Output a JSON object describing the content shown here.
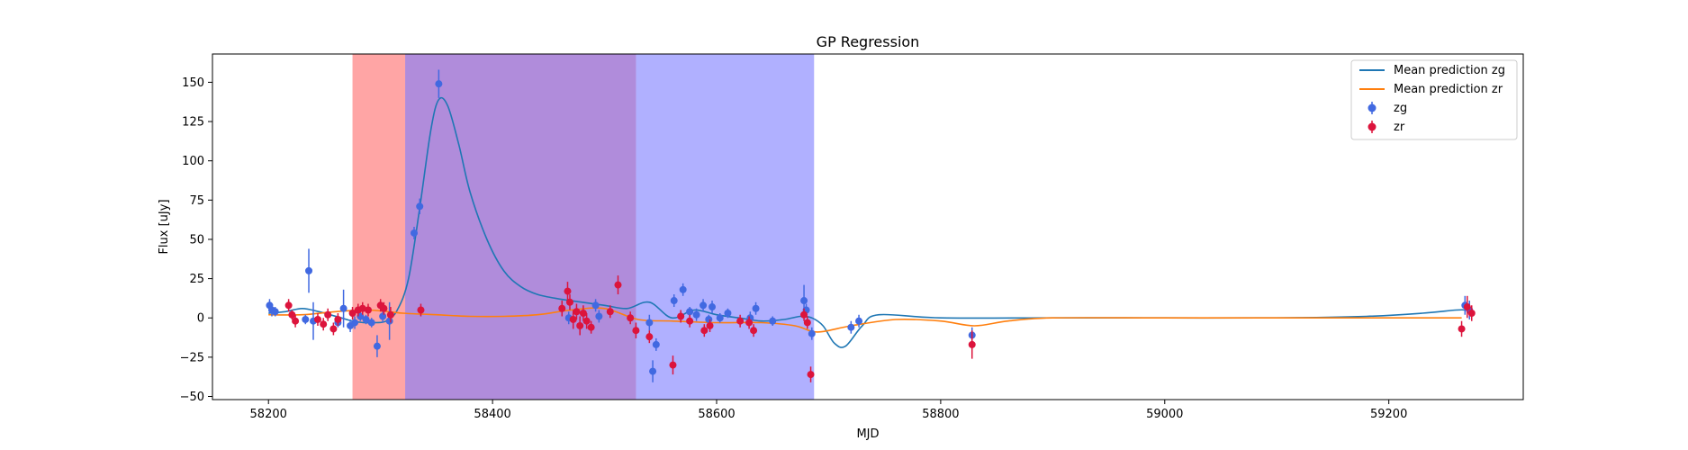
{
  "chart_data": {
    "type": "scatter",
    "title": "GP Regression",
    "xlabel": "MJD",
    "ylabel": "Flux [uJy]",
    "xlim": [
      58150,
      59320
    ],
    "ylim": [
      -52,
      168
    ],
    "xticks": [
      58200,
      58400,
      58600,
      58800,
      59000,
      59200
    ],
    "yticks": [
      -50,
      -25,
      0,
      25,
      50,
      75,
      100,
      125,
      150
    ],
    "grid": false,
    "legend_position": "top-right",
    "colors": {
      "zg_line": "#1f77b4",
      "zr_line": "#ff7f0e",
      "zg_points": "#4169e1",
      "zr_points": "#dc143c",
      "span_red": "#ff7f7f",
      "span_blue": "#7b7bff"
    },
    "spans": [
      {
        "x0": 58275,
        "x1": 58322,
        "color": "#ff7f7f",
        "opacity": 0.7
      },
      {
        "x0": 58322,
        "x1": 58528,
        "color": "#ff7f7f",
        "opacity": 0.7
      },
      {
        "x0": 58322,
        "x1": 58528,
        "color": "#7b7bff",
        "opacity": 0.6
      },
      {
        "x0": 58528,
        "x1": 58687,
        "color": "#7b7bff",
        "opacity": 0.6
      }
    ],
    "series": [
      {
        "name": "Mean prediction zg",
        "kind": "line",
        "color": "#1f77b4",
        "x": [
          58200,
          58215,
          58230,
          58245,
          58255,
          58265,
          58275,
          58285,
          58295,
          58305,
          58315,
          58325,
          58335,
          58345,
          58352,
          58360,
          58370,
          58380,
          58395,
          58410,
          58425,
          58440,
          58460,
          58480,
          58500,
          58520,
          58540,
          58560,
          58580,
          58600,
          58620,
          58640,
          58660,
          58675,
          58685,
          58695,
          58705,
          58715,
          58730,
          58745,
          58800,
          58900,
          59000,
          59100,
          59180,
          59230,
          59260,
          59270
        ],
        "y": [
          3,
          4,
          6,
          4,
          2,
          0,
          -2,
          -3,
          -3,
          -2,
          5,
          25,
          70,
          120,
          139,
          135,
          110,
          80,
          50,
          30,
          20,
          15,
          12,
          10,
          8,
          6,
          10,
          0,
          5,
          2,
          0,
          -2,
          -1,
          1,
          0,
          -5,
          -16,
          -18,
          -5,
          2,
          0,
          0,
          0,
          0,
          1,
          3,
          5,
          5
        ]
      },
      {
        "name": "Mean prediction zr",
        "kind": "line",
        "color": "#ff7f0e",
        "x": [
          58200,
          58230,
          58260,
          58290,
          58320,
          58350,
          58380,
          58410,
          58440,
          58470,
          58500,
          58530,
          58560,
          58600,
          58640,
          58670,
          58690,
          58720,
          58760,
          58800,
          58830,
          58860,
          58900,
          59000,
          59100,
          59200,
          59265
        ],
        "y": [
          2,
          2,
          4,
          5,
          3,
          2,
          1,
          1,
          2,
          5,
          6,
          -1,
          -2,
          -3,
          -3,
          -5,
          -9,
          -5,
          -1,
          -2,
          -5,
          -2,
          0,
          0,
          0,
          0,
          0
        ]
      },
      {
        "name": "zg",
        "kind": "errorbar",
        "color": "#4169e1",
        "points": [
          {
            "x": 58201,
            "y": 8,
            "e": 4
          },
          {
            "x": 58203,
            "y": 5,
            "e": 4
          },
          {
            "x": 58206,
            "y": 4,
            "e": 3
          },
          {
            "x": 58233,
            "y": -1,
            "e": 3
          },
          {
            "x": 58236,
            "y": 30,
            "e": 14
          },
          {
            "x": 58240,
            "y": -2,
            "e": 12
          },
          {
            "x": 58262,
            "y": -3,
            "e": 3
          },
          {
            "x": 58267,
            "y": 6,
            "e": 12
          },
          {
            "x": 58273,
            "y": -5,
            "e": 4
          },
          {
            "x": 58277,
            "y": -3,
            "e": 4
          },
          {
            "x": 58282,
            "y": 1,
            "e": 3
          },
          {
            "x": 58287,
            "y": -1,
            "e": 3
          },
          {
            "x": 58292,
            "y": -3,
            "e": 3
          },
          {
            "x": 58297,
            "y": -18,
            "e": 7
          },
          {
            "x": 58302,
            "y": 1,
            "e": 4
          },
          {
            "x": 58308,
            "y": -2,
            "e": 12
          },
          {
            "x": 58330,
            "y": 54,
            "e": 4
          },
          {
            "x": 58335,
            "y": 71,
            "e": 5
          },
          {
            "x": 58352,
            "y": 149,
            "e": 9
          },
          {
            "x": 58468,
            "y": 0,
            "e": 4
          },
          {
            "x": 58492,
            "y": 8,
            "e": 4
          },
          {
            "x": 58495,
            "y": 1,
            "e": 4
          },
          {
            "x": 58540,
            "y": -3,
            "e": 5
          },
          {
            "x": 58543,
            "y": -34,
            "e": 7
          },
          {
            "x": 58546,
            "y": -17,
            "e": 4
          },
          {
            "x": 58562,
            "y": 11,
            "e": 4
          },
          {
            "x": 58570,
            "y": 18,
            "e": 4
          },
          {
            "x": 58576,
            "y": 4,
            "e": 3
          },
          {
            "x": 58582,
            "y": 2,
            "e": 4
          },
          {
            "x": 58588,
            "y": 8,
            "e": 4
          },
          {
            "x": 58593,
            "y": -1,
            "e": 3
          },
          {
            "x": 58596,
            "y": 7,
            "e": 4
          },
          {
            "x": 58603,
            "y": 0,
            "e": 3
          },
          {
            "x": 58610,
            "y": 3,
            "e": 3
          },
          {
            "x": 58630,
            "y": 0,
            "e": 4
          },
          {
            "x": 58635,
            "y": 6,
            "e": 4
          },
          {
            "x": 58650,
            "y": -2,
            "e": 3
          },
          {
            "x": 58678,
            "y": 11,
            "e": 10
          },
          {
            "x": 58680,
            "y": 5,
            "e": 4
          },
          {
            "x": 58685,
            "y": -10,
            "e": 4
          },
          {
            "x": 58720,
            "y": -6,
            "e": 4
          },
          {
            "x": 58727,
            "y": -2,
            "e": 4
          },
          {
            "x": 58828,
            "y": -11,
            "e": 5
          },
          {
            "x": 59268,
            "y": 8,
            "e": 6
          },
          {
            "x": 59272,
            "y": 5,
            "e": 6
          }
        ]
      },
      {
        "name": "zr",
        "kind": "errorbar",
        "color": "#dc143c",
        "points": [
          {
            "x": 58218,
            "y": 8,
            "e": 4
          },
          {
            "x": 58221,
            "y": 2,
            "e": 3
          },
          {
            "x": 58224,
            "y": -2,
            "e": 4
          },
          {
            "x": 58244,
            "y": -1,
            "e": 4
          },
          {
            "x": 58249,
            "y": -4,
            "e": 4
          },
          {
            "x": 58253,
            "y": 2,
            "e": 4
          },
          {
            "x": 58258,
            "y": -7,
            "e": 4
          },
          {
            "x": 58262,
            "y": -1,
            "e": 4
          },
          {
            "x": 58275,
            "y": 3,
            "e": 4
          },
          {
            "x": 58280,
            "y": 5,
            "e": 4
          },
          {
            "x": 58284,
            "y": 6,
            "e": 4
          },
          {
            "x": 58289,
            "y": 5,
            "e": 4
          },
          {
            "x": 58300,
            "y": 8,
            "e": 4
          },
          {
            "x": 58303,
            "y": 6,
            "e": 4
          },
          {
            "x": 58309,
            "y": 2,
            "e": 5
          },
          {
            "x": 58336,
            "y": 5,
            "e": 4
          },
          {
            "x": 58462,
            "y": 6,
            "e": 5
          },
          {
            "x": 58467,
            "y": 17,
            "e": 6
          },
          {
            "x": 58469,
            "y": 10,
            "e": 5
          },
          {
            "x": 58472,
            "y": -1,
            "e": 6
          },
          {
            "x": 58475,
            "y": 4,
            "e": 5
          },
          {
            "x": 58478,
            "y": -5,
            "e": 6
          },
          {
            "x": 58481,
            "y": 3,
            "e": 5
          },
          {
            "x": 58484,
            "y": -2,
            "e": 5
          },
          {
            "x": 58488,
            "y": -6,
            "e": 4
          },
          {
            "x": 58505,
            "y": 4,
            "e": 4
          },
          {
            "x": 58512,
            "y": 21,
            "e": 6
          },
          {
            "x": 58523,
            "y": 0,
            "e": 4
          },
          {
            "x": 58528,
            "y": -8,
            "e": 5
          },
          {
            "x": 58540,
            "y": -12,
            "e": 4
          },
          {
            "x": 58561,
            "y": -30,
            "e": 6
          },
          {
            "x": 58568,
            "y": 1,
            "e": 4
          },
          {
            "x": 58576,
            "y": -2,
            "e": 4
          },
          {
            "x": 58589,
            "y": -8,
            "e": 4
          },
          {
            "x": 58594,
            "y": -5,
            "e": 4
          },
          {
            "x": 58621,
            "y": -2,
            "e": 4
          },
          {
            "x": 58629,
            "y": -3,
            "e": 4
          },
          {
            "x": 58633,
            "y": -8,
            "e": 4
          },
          {
            "x": 58678,
            "y": 2,
            "e": 4
          },
          {
            "x": 58681,
            "y": -3,
            "e": 4
          },
          {
            "x": 58684,
            "y": -36,
            "e": 5
          },
          {
            "x": 58828,
            "y": -17,
            "e": 9
          },
          {
            "x": 59265,
            "y": -7,
            "e": 5
          },
          {
            "x": 59270,
            "y": 7,
            "e": 7
          },
          {
            "x": 59274,
            "y": 3,
            "e": 5
          }
        ]
      }
    ]
  }
}
